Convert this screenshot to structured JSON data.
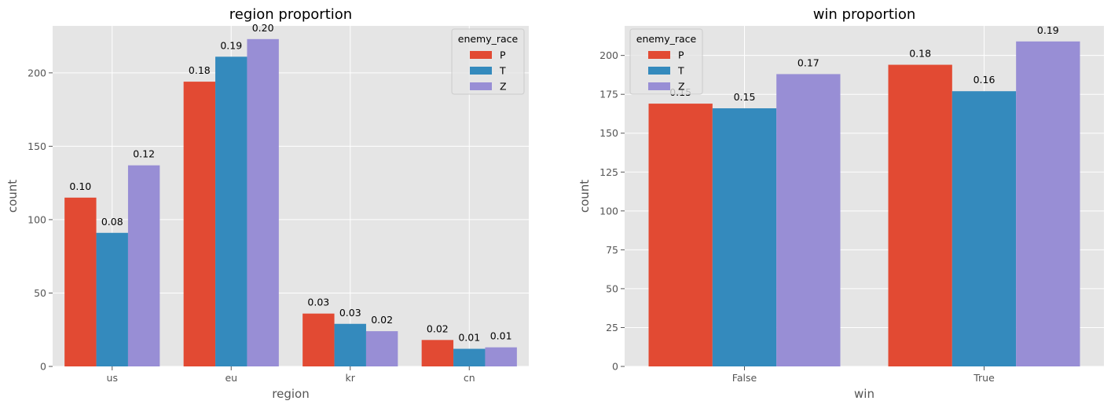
{
  "chart_data": [
    {
      "type": "bar",
      "title": "region proportion",
      "xlabel": "region",
      "ylabel": "count",
      "categories": [
        "us",
        "eu",
        "kr",
        "cn"
      ],
      "ylim": [
        0,
        232
      ],
      "yticks": [
        0,
        50,
        100,
        150,
        200
      ],
      "series": [
        {
          "name": "P",
          "values": [
            115,
            194,
            36,
            18
          ],
          "labels": [
            "0.10",
            "0.18",
            "0.03",
            "0.02"
          ]
        },
        {
          "name": "T",
          "values": [
            91,
            211,
            29,
            12
          ],
          "labels": [
            "0.08",
            "0.19",
            "0.03",
            "0.01"
          ]
        },
        {
          "name": "Z",
          "values": [
            137,
            223,
            24,
            13
          ],
          "labels": [
            "0.12",
            "0.20",
            "0.02",
            "0.01"
          ]
        }
      ],
      "legend": {
        "title": "enemy_race",
        "position": "upper right"
      },
      "grid": true
    },
    {
      "type": "bar",
      "title": "win proportion",
      "xlabel": "win",
      "ylabel": "count",
      "categories": [
        "False",
        "True"
      ],
      "ylim": [
        0,
        219
      ],
      "yticks": [
        0,
        25,
        50,
        75,
        100,
        125,
        150,
        175,
        200
      ],
      "series": [
        {
          "name": "P",
          "values": [
            169,
            194
          ],
          "labels": [
            "0.15",
            "0.18"
          ]
        },
        {
          "name": "T",
          "values": [
            166,
            177
          ],
          "labels": [
            "0.15",
            "0.16"
          ]
        },
        {
          "name": "Z",
          "values": [
            188,
            209
          ],
          "labels": [
            "0.17",
            "0.19"
          ]
        }
      ],
      "legend": {
        "title": "enemy_race",
        "position": "upper left"
      },
      "grid": true
    }
  ],
  "colors": {
    "P": "#E24A33",
    "T": "#348ABD",
    "Z": "#988ED5",
    "panel_bg": "#E5E5E5",
    "grid": "#FFFFFF"
  }
}
